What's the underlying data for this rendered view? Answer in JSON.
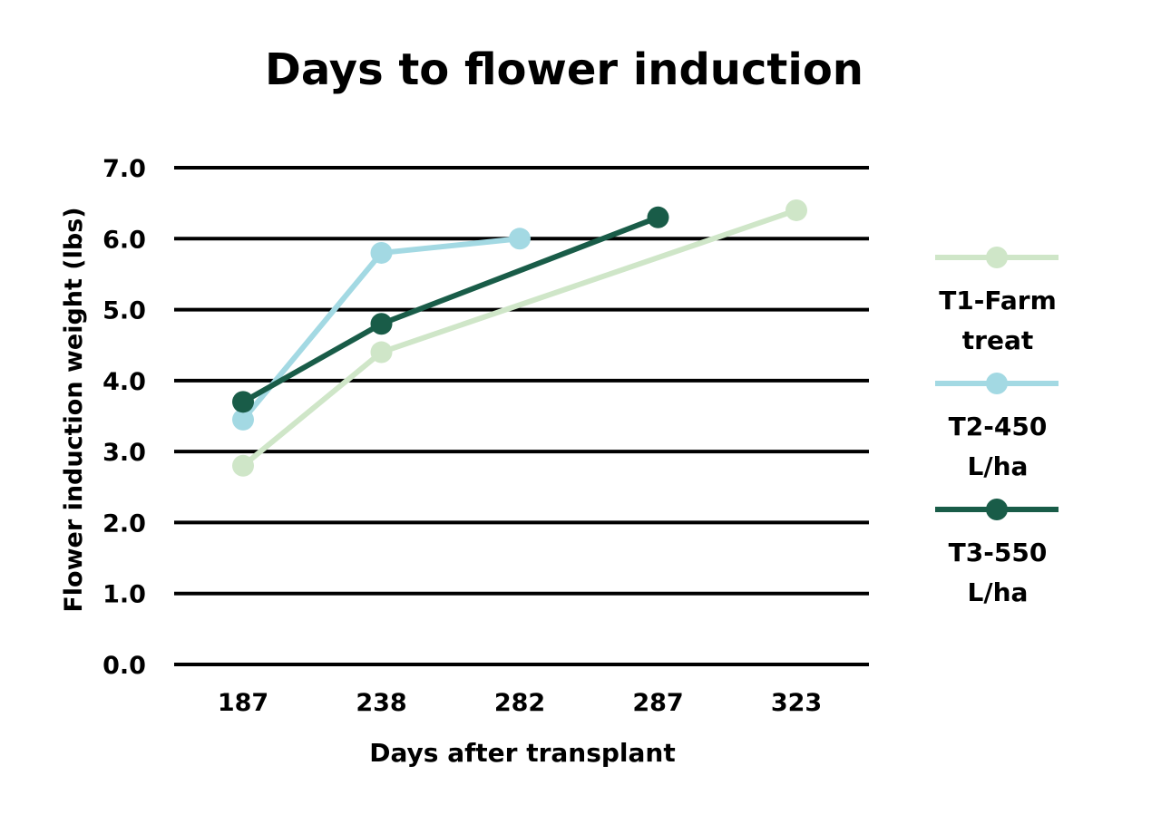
{
  "chart_data": {
    "type": "line",
    "title": "Days to flower induction",
    "xlabel": "Days after transplant",
    "ylabel": "Flower induction weight (lbs)",
    "categories": [
      "187",
      "238",
      "282",
      "287",
      "323"
    ],
    "ylim": [
      0,
      7
    ],
    "yticks": [
      "0.0",
      "1.0",
      "2.0",
      "3.0",
      "4.0",
      "5.0",
      "6.0",
      "7.0"
    ],
    "grid": true,
    "legend_position": "right",
    "series": [
      {
        "name": "T1-Farm treat",
        "legend_lines": [
          "T1-Farm",
          "treat"
        ],
        "color": "#cfe6c8",
        "values": [
          2.8,
          4.4,
          null,
          null,
          6.4
        ]
      },
      {
        "name": "T2-450 L/ha",
        "legend_lines": [
          "T2-450",
          "L/ha"
        ],
        "color": "#a3d9e3",
        "values": [
          3.45,
          5.8,
          6.0,
          null,
          null
        ]
      },
      {
        "name": "T3-550 L/ha",
        "legend_lines": [
          "T3-550",
          "L/ha"
        ],
        "color": "#195c48",
        "values": [
          3.7,
          4.8,
          null,
          6.3,
          null
        ]
      }
    ]
  }
}
